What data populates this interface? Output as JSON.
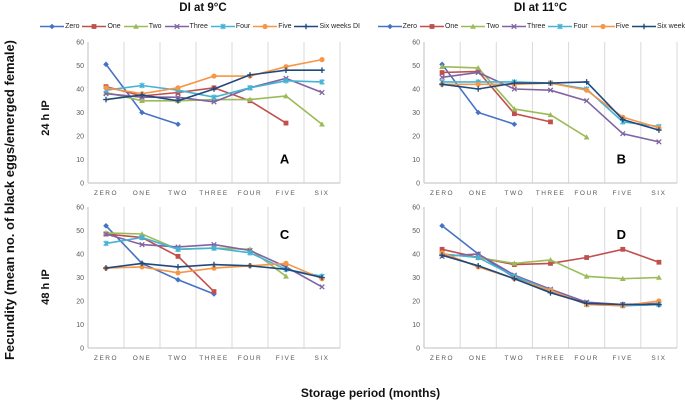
{
  "figure": {
    "y_axis_label": "Fecundity (mean no. of black eggs/emerged female)",
    "x_axis_label": "Storage period (months)",
    "col_titles": [
      "DI at 9°C",
      "DI at 11°C"
    ],
    "row_labels": [
      "24 h IP",
      "48 h IP"
    ]
  },
  "legend": {
    "entries": [
      {
        "name": "Zero",
        "color": "#4472C4",
        "marker": "diamond"
      },
      {
        "name": "One",
        "color": "#C0504D",
        "marker": "square"
      },
      {
        "name": "Two",
        "color": "#9BBB59",
        "marker": "triangle"
      },
      {
        "name": "Three",
        "color": "#8064A2",
        "marker": "x"
      },
      {
        "name": "Four",
        "color": "#44B3D6",
        "marker": "asterisk"
      },
      {
        "name": "Five",
        "color": "#F79646",
        "marker": "circle"
      },
      {
        "name": "Six weeks DI",
        "color": "#1F497D",
        "marker": "plus"
      }
    ],
    "colors": {
      "gridline": "#D9D9D9",
      "axis": "#BFBFBF",
      "tick_text": "#595959"
    }
  },
  "chart_data": [
    {
      "type": "line",
      "panel_label": "A",
      "panel_label_pos": "bottom-right",
      "title": "DI at 9°C",
      "condition": "24 h IP",
      "categories": [
        "ZERO",
        "ONE",
        "TWO",
        "THREE",
        "FOUR",
        "FIVE",
        "SIX"
      ],
      "ylim": [
        0,
        60
      ],
      "yticks": [
        0,
        10,
        20,
        30,
        40,
        50,
        60
      ],
      "grid": "vertical",
      "legend_position": "top",
      "series": [
        {
          "name": "Zero",
          "values": [
            50.5,
            30,
            25,
            null,
            null,
            null,
            null
          ]
        },
        {
          "name": "One",
          "values": [
            41,
            37,
            38.5,
            40.5,
            35,
            25.5,
            null
          ]
        },
        {
          "name": "Two",
          "values": [
            38.5,
            35,
            35,
            35.5,
            35.5,
            37,
            25
          ]
        },
        {
          "name": "Three",
          "values": [
            38,
            36.5,
            36.5,
            34.5,
            40.5,
            44.5,
            38.5
          ]
        },
        {
          "name": "Four",
          "values": [
            39.5,
            41.5,
            39.5,
            36.5,
            40.5,
            43.5,
            43
          ]
        },
        {
          "name": "Five",
          "values": [
            40.5,
            38,
            40.5,
            45.5,
            45.5,
            49.5,
            52.5
          ]
        },
        {
          "name": "Six weeks DI",
          "values": [
            35.5,
            37.5,
            35,
            40,
            46,
            48,
            48
          ]
        }
      ]
    },
    {
      "type": "line",
      "panel_label": "B",
      "panel_label_pos": "bottom-right",
      "title": "DI at 11°C",
      "condition": "24 h IP",
      "categories": [
        "ZERO",
        "ONE",
        "TWO",
        "THREE",
        "FOUR",
        "FIVE",
        "SIX"
      ],
      "ylim": [
        0,
        60
      ],
      "yticks": [
        0,
        10,
        20,
        30,
        40,
        50,
        60
      ],
      "grid": "vertical",
      "legend_position": "top",
      "series": [
        {
          "name": "Zero",
          "values": [
            50.5,
            30,
            25,
            null,
            null,
            null,
            null
          ]
        },
        {
          "name": "One",
          "values": [
            47,
            47.5,
            29.5,
            26,
            null,
            null,
            null
          ]
        },
        {
          "name": "Two",
          "values": [
            49.5,
            49,
            31.5,
            29,
            19.5,
            null,
            null
          ]
        },
        {
          "name": "Three",
          "values": [
            45,
            47,
            40,
            39.5,
            35,
            21,
            17.5
          ]
        },
        {
          "name": "Four",
          "values": [
            43,
            43,
            43,
            42.5,
            40,
            26,
            24
          ]
        },
        {
          "name": "Five",
          "values": [
            42,
            42,
            42,
            42.5,
            39.5,
            28,
            23.5
          ]
        },
        {
          "name": "Six weeks DI",
          "values": [
            42,
            40,
            42.5,
            42.5,
            43,
            27,
            22.5
          ]
        }
      ]
    },
    {
      "type": "line",
      "panel_label": "C",
      "panel_label_pos": "top-right",
      "title": "DI at 9°C",
      "condition": "48 h IP",
      "categories": [
        "ZERO",
        "ONE",
        "TWO",
        "THREE",
        "FOUR",
        "FIVE",
        "SIX"
      ],
      "ylim": [
        0,
        60
      ],
      "yticks": [
        0,
        10,
        20,
        30,
        40,
        50,
        60
      ],
      "grid": "vertical",
      "legend_position": "none",
      "series": [
        {
          "name": "Zero",
          "values": [
            52,
            36,
            29,
            23,
            null,
            null,
            null
          ]
        },
        {
          "name": "One",
          "values": [
            48.5,
            47,
            39,
            24,
            null,
            null,
            null
          ]
        },
        {
          "name": "Two",
          "values": [
            49,
            48.5,
            42,
            42.5,
            42,
            30.5,
            null
          ]
        },
        {
          "name": "Three",
          "values": [
            48.5,
            44,
            43,
            44,
            41.5,
            34.5,
            26
          ]
        },
        {
          "name": "Four",
          "values": [
            44.5,
            47,
            42,
            42.5,
            40.5,
            33.5,
            30.5
          ]
        },
        {
          "name": "Five",
          "values": [
            34,
            34.5,
            32,
            34,
            35,
            36,
            29.5
          ]
        },
        {
          "name": "Six weeks DI",
          "values": [
            34,
            36,
            34.5,
            35.5,
            35,
            33.5,
            30
          ]
        }
      ]
    },
    {
      "type": "line",
      "panel_label": "D",
      "panel_label_pos": "top-right",
      "title": "DI at 11°C",
      "condition": "48 h IP",
      "categories": [
        "ZERO",
        "ONE",
        "TWO",
        "THREE",
        "FOUR",
        "FIVE",
        "SIX"
      ],
      "ylim": [
        0,
        60
      ],
      "yticks": [
        0,
        10,
        20,
        30,
        40,
        50,
        60
      ],
      "grid": "vertical",
      "legend_position": "none",
      "series": [
        {
          "name": "Zero",
          "values": [
            52,
            40,
            30,
            24,
            19,
            18,
            18.5
          ]
        },
        {
          "name": "One",
          "values": [
            42,
            38.5,
            35.5,
            36,
            38.5,
            42,
            36.5
          ]
        },
        {
          "name": "Two",
          "values": [
            40,
            38.5,
            36,
            37.5,
            30.5,
            29.5,
            30
          ]
        },
        {
          "name": "Three",
          "values": [
            39,
            40,
            31,
            25,
            19.5,
            18.5,
            19
          ]
        },
        {
          "name": "Four",
          "values": [
            40,
            38.5,
            30.5,
            24.5,
            18.5,
            18,
            18.5
          ]
        },
        {
          "name": "Five",
          "values": [
            40.5,
            34.5,
            29.5,
            24.5,
            18.5,
            18,
            20
          ]
        },
        {
          "name": "Six weeks DI",
          "values": [
            39.5,
            35,
            29.5,
            23.5,
            19,
            18.5,
            18.5
          ]
        }
      ]
    }
  ]
}
